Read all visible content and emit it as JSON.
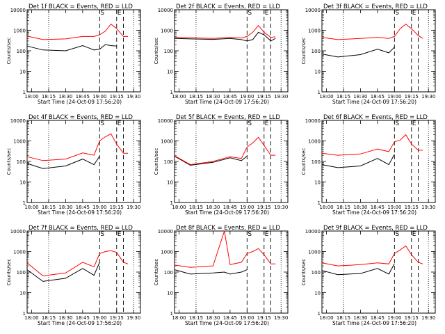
{
  "x_tick_labels": [
    "18:00",
    "18:15",
    "18:30",
    "18:45",
    "19:00",
    "19:15",
    "19:30"
  ],
  "y_tick_labels": [
    "1",
    "10",
    "100",
    "1000",
    "10000"
  ],
  "ylabel": "Counts/sec",
  "xlabel": "Start Time (24-Oct-09 17:56:20)",
  "marker_labels": [
    "S",
    "E"
  ],
  "colors": {
    "events": "#000000",
    "lld": "#ff0000"
  },
  "chart_data": [
    {
      "type": "line",
      "title": "Det 1f BLACK = Events, RED = LLD",
      "x": [
        "17:56",
        "18:10",
        "18:30",
        "18:45",
        "18:55",
        "19:00",
        "19:05",
        "19:10",
        "19:15",
        "19:21",
        "19:25"
      ],
      "series": [
        {
          "values": [
            170,
            110,
            100,
            180,
            110,
            120,
            200,
            180,
            170,
            0,
            170
          ]
        },
        {
          "values": [
            520,
            350,
            380,
            500,
            500,
            600,
            900,
            2000,
            1200,
            500,
            500
          ]
        }
      ],
      "xlim": [
        "17:56",
        "19:36"
      ],
      "ylim": [
        1,
        10000
      ],
      "yscale": "log",
      "vlines": {
        "dotted": [
          "18:15",
          "19:30"
        ],
        "dashed": [
          "19:00",
          "19:15",
          "19:21"
        ]
      }
    },
    {
      "type": "line",
      "title": "Det 2f BLACK = Events, RED = LLD",
      "x": [
        "17:56",
        "18:10",
        "18:30",
        "18:45",
        "18:55",
        "19:00",
        "19:05",
        "19:10",
        "19:15",
        "19:21",
        "19:25"
      ],
      "series": [
        {
          "values": [
            400,
            380,
            360,
            400,
            350,
            300,
            350,
            800,
            600,
            300,
            400
          ]
        },
        {
          "values": [
            450,
            430,
            400,
            450,
            420,
            500,
            800,
            1700,
            800,
            450,
            480
          ]
        }
      ],
      "xlim": [
        "17:56",
        "19:36"
      ],
      "ylim": [
        1,
        10000
      ],
      "yscale": "log",
      "vlines": {
        "dotted": [
          "18:15",
          "19:30"
        ],
        "dashed": [
          "19:00",
          "19:15",
          "19:21"
        ]
      }
    },
    {
      "type": "line",
      "title": "Det 3f BLACK = Events, RED = LLD",
      "x": [
        "17:56",
        "18:10",
        "18:30",
        "18:45",
        "18:55",
        "19:00",
        "19:05",
        "19:10",
        "19:15",
        "19:21",
        "19:25"
      ],
      "series": [
        {
          "values": [
            70,
            50,
            65,
            120,
            80,
            150,
            0,
            0,
            0,
            0,
            150
          ]
        },
        {
          "values": [
            450,
            350,
            400,
            450,
            400,
            500,
            1200,
            2000,
            1200,
            550,
            400
          ]
        }
      ],
      "xlim": [
        "17:56",
        "19:36"
      ],
      "ylim": [
        1,
        10000
      ],
      "yscale": "log",
      "vlines": {
        "dotted": [
          "18:15",
          "19:30"
        ],
        "dashed": [
          "19:00",
          "19:15",
          "19:21"
        ]
      }
    },
    {
      "type": "line",
      "title": "Det 4f BLACK = Events, RED = LLD",
      "x": [
        "17:56",
        "18:10",
        "18:30",
        "18:45",
        "18:55",
        "19:00",
        "19:05",
        "19:10",
        "19:15",
        "19:21",
        "19:25"
      ],
      "series": [
        {
          "values": [
            80,
            45,
            60,
            130,
            70,
            180,
            0,
            0,
            0,
            0,
            120
          ]
        },
        {
          "values": [
            170,
            110,
            130,
            260,
            200,
            1000,
            1600,
            2200,
            700,
            250,
            250
          ]
        }
      ],
      "xlim": [
        "17:56",
        "19:36"
      ],
      "ylim": [
        1,
        10000
      ],
      "yscale": "log",
      "vlines": {
        "dotted": [
          "18:15",
          "19:30"
        ],
        "dashed": [
          "19:00",
          "19:15",
          "19:21"
        ]
      }
    },
    {
      "type": "line",
      "title": "Det 5f BLACK = Events, RED = LLD",
      "x": [
        "17:56",
        "18:10",
        "18:30",
        "18:45",
        "18:55",
        "19:00",
        "19:05",
        "19:10",
        "19:15",
        "19:21",
        "19:25"
      ],
      "series": [
        {
          "values": [
            180,
            65,
            90,
            150,
            110,
            180,
            0,
            0,
            0,
            0,
            180
          ]
        },
        {
          "values": [
            190,
            70,
            100,
            170,
            140,
            500,
            800,
            1500,
            600,
            200,
            200
          ]
        }
      ],
      "xlim": [
        "17:56",
        "19:36"
      ],
      "ylim": [
        1,
        10000
      ],
      "yscale": "log",
      "vlines": {
        "dotted": [
          "18:15",
          "19:30"
        ],
        "dashed": [
          "19:00",
          "19:15",
          "19:21"
        ]
      }
    },
    {
      "type": "line",
      "title": "Det 6f BLACK = Events, RED = LLD",
      "x": [
        "17:56",
        "18:10",
        "18:30",
        "18:45",
        "18:55",
        "19:00",
        "19:05",
        "19:10",
        "19:15",
        "19:21",
        "19:25"
      ],
      "series": [
        {
          "values": [
            70,
            50,
            60,
            140,
            70,
            220,
            0,
            0,
            0,
            0,
            130
          ]
        },
        {
          "values": [
            250,
            200,
            230,
            400,
            300,
            900,
            1100,
            2000,
            700,
            350,
            350
          ]
        }
      ],
      "xlim": [
        "17:56",
        "19:36"
      ],
      "ylim": [
        1,
        10000
      ],
      "yscale": "log",
      "vlines": {
        "dotted": [
          "18:15",
          "19:30"
        ],
        "dashed": [
          "19:00",
          "19:15",
          "19:21"
        ]
      }
    },
    {
      "type": "line",
      "title": "Det 7f BLACK = Events, RED = LLD",
      "x": [
        "17:56",
        "18:10",
        "18:30",
        "18:45",
        "18:55",
        "19:00",
        "19:05",
        "19:10",
        "19:15",
        "19:21",
        "19:25"
      ],
      "series": [
        {
          "values": [
            130,
            35,
            50,
            150,
            70,
            300,
            0,
            0,
            0,
            0,
            100
          ]
        },
        {
          "values": [
            280,
            65,
            90,
            300,
            180,
            800,
            1000,
            1100,
            900,
            300,
            250
          ]
        }
      ],
      "xlim": [
        "17:56",
        "19:36"
      ],
      "ylim": [
        1,
        10000
      ],
      "yscale": "log",
      "vlines": {
        "dotted": [
          "18:15",
          "19:30"
        ],
        "dashed": [
          "19:00",
          "19:15",
          "19:21"
        ]
      }
    },
    {
      "type": "line",
      "title": "Det 8f BLACK = Events, RED = LLD",
      "x": [
        "17:56",
        "18:10",
        "18:30",
        "18:40",
        "18:45",
        "18:55",
        "19:00",
        "19:05",
        "19:10",
        "19:15",
        "19:21",
        "19:25"
      ],
      "series": [
        {
          "values": [
            130,
            80,
            90,
            100,
            80,
            100,
            130,
            0,
            0,
            0,
            0,
            110
          ]
        },
        {
          "values": [
            220,
            170,
            200,
            10000,
            230,
            300,
            800,
            1000,
            1400,
            700,
            250,
            250
          ]
        }
      ],
      "xlim": [
        "17:56",
        "19:36"
      ],
      "ylim": [
        1,
        10000
      ],
      "yscale": "log",
      "vlines": {
        "dotted": [
          "18:15",
          "19:30"
        ],
        "dashed": [
          "19:00",
          "19:15",
          "19:21"
        ]
      }
    },
    {
      "type": "line",
      "title": "Det 9f BLACK = Events, RED = LLD",
      "x": [
        "17:56",
        "18:10",
        "18:30",
        "18:45",
        "18:55",
        "19:00",
        "19:05",
        "19:10",
        "19:15",
        "19:21",
        "19:25"
      ],
      "series": [
        {
          "values": [
            120,
            75,
            85,
            150,
            80,
            260,
            0,
            0,
            0,
            0,
            110
          ]
        },
        {
          "values": [
            280,
            200,
            230,
            280,
            250,
            800,
            1200,
            1900,
            700,
            300,
            250
          ]
        }
      ],
      "xlim": [
        "17:56",
        "19:36"
      ],
      "ylim": [
        1,
        10000
      ],
      "yscale": "log",
      "vlines": {
        "dotted": [
          "18:15",
          "19:30"
        ],
        "dashed": [
          "19:00",
          "19:15",
          "19:21"
        ]
      }
    }
  ]
}
